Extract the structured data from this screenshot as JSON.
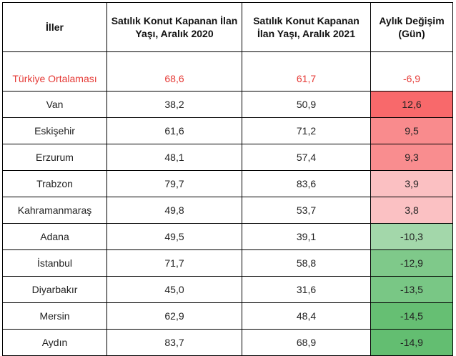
{
  "headers": [
    "İller",
    "Satılık Konut Kapanan İlan Yaşı, Aralık 2020",
    "Satılık Konut Kapanan İlan Yaşı, Aralık 2021",
    "Aylık Değişim (Gün)"
  ],
  "average": {
    "name": "Türkiye Ortalaması",
    "v2020": "68,6",
    "v2021": "61,7",
    "change": "-6,9"
  },
  "rows": [
    {
      "city": "Van",
      "v2020": "38,2",
      "v2021": "50,9",
      "change": "12,6",
      "color": "#f8696b"
    },
    {
      "city": "Eskişehir",
      "v2020": "61,6",
      "v2021": "71,2",
      "change": "9,5",
      "color": "#f98b8d"
    },
    {
      "city": "Erzurum",
      "v2020": "48,1",
      "v2021": "57,4",
      "change": "9,3",
      "color": "#f98d8f"
    },
    {
      "city": "Trabzon",
      "v2020": "79,7",
      "v2021": "83,6",
      "change": "3,9",
      "color": "#fbc0c2"
    },
    {
      "city": "Kahramanmaraş",
      "v2020": "49,8",
      "v2021": "53,7",
      "change": "3,8",
      "color": "#fbc1c3"
    },
    {
      "city": "Adana",
      "v2020": "49,5",
      "v2021": "39,1",
      "change": "-10,3",
      "color": "#a3d7aa"
    },
    {
      "city": "İstanbul",
      "v2020": "71,7",
      "v2021": "58,8",
      "change": "-12,9",
      "color": "#7fc98a"
    },
    {
      "city": "Diyarbakır",
      "v2020": "45,0",
      "v2021": "31,6",
      "change": "-13,5",
      "color": "#79c785"
    },
    {
      "city": "Mersin",
      "v2020": "62,9",
      "v2021": "48,4",
      "change": "-14,5",
      "color": "#66bf73"
    },
    {
      "city": "Aydın",
      "v2020": "83,7",
      "v2021": "68,9",
      "change": "-14,9",
      "color": "#63be71"
    }
  ]
}
